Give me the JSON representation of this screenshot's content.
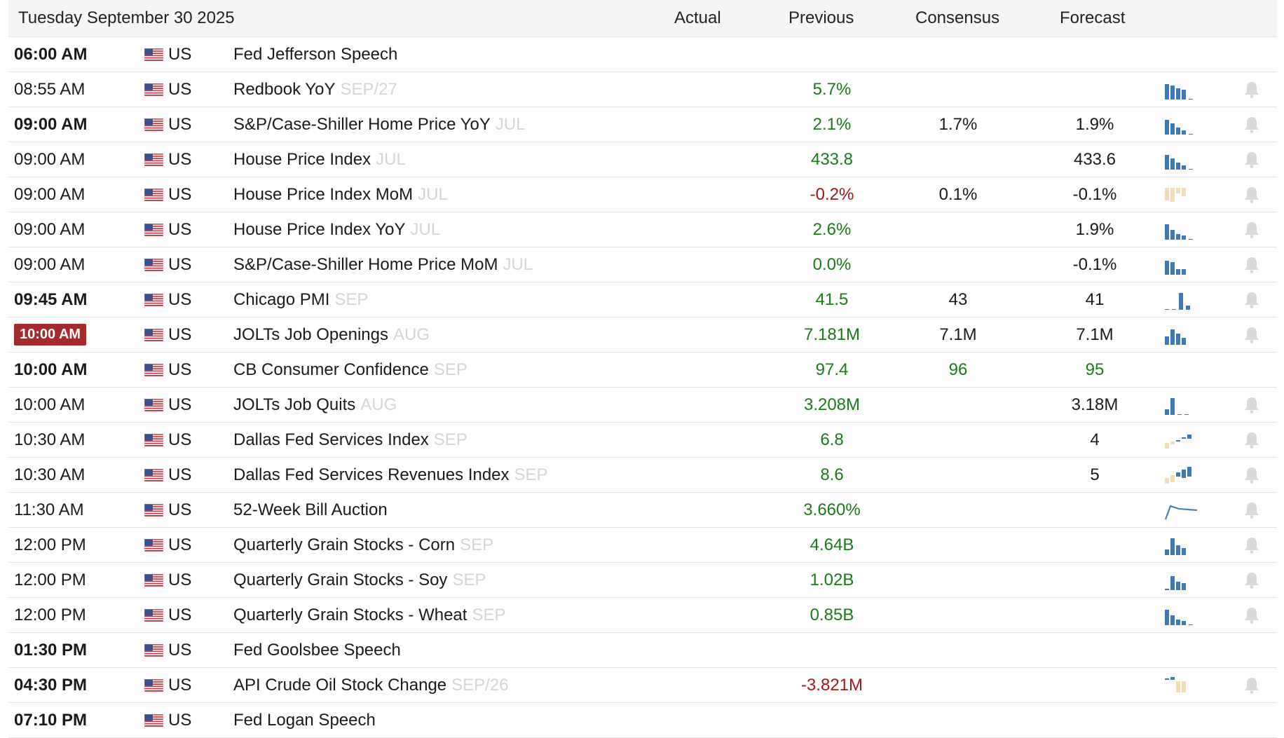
{
  "header": {
    "date": "Tuesday September 30 2025",
    "col_actual": "Actual",
    "col_previous": "Previous",
    "col_consensus": "Consensus",
    "col_forecast": "Forecast"
  },
  "colors": {
    "positive": "#1a7a1a",
    "negative": "#a01818",
    "bar_blue": "#3d7ab5",
    "bar_tan": "#f2ddb5",
    "live_badge": "#a52a2a",
    "bell": "#d9d9d9"
  },
  "rows": [
    {
      "time": "06:00 AM",
      "bold": true,
      "country": "US",
      "event": "Fed Jefferson Speech",
      "period": "",
      "previous": "",
      "prev_tone": "",
      "consensus": "",
      "cons_tone": "",
      "forecast": "",
      "fore_tone": "",
      "spark": "none",
      "bell": false
    },
    {
      "time": "08:55 AM",
      "bold": false,
      "country": "US",
      "event": "Redbook YoY",
      "period": "SEP/27",
      "previous": "5.7%",
      "prev_tone": "green",
      "consensus": "",
      "cons_tone": "",
      "forecast": "",
      "fore_tone": "",
      "spark": "bars4",
      "bell": true
    },
    {
      "time": "09:00 AM",
      "bold": true,
      "country": "US",
      "event": "S&P/Case-Shiller Home Price YoY",
      "period": "JUL",
      "previous": "2.1%",
      "prev_tone": "green",
      "consensus": "1.7%",
      "cons_tone": "",
      "forecast": "1.9%",
      "fore_tone": "",
      "spark": "bars4b",
      "bell": true
    },
    {
      "time": "09:00 AM",
      "bold": false,
      "country": "US",
      "event": "House Price Index",
      "period": "JUL",
      "previous": "433.8",
      "prev_tone": "green",
      "consensus": "",
      "cons_tone": "",
      "forecast": "433.6",
      "fore_tone": "",
      "spark": "bars4b",
      "bell": true
    },
    {
      "time": "09:00 AM",
      "bold": false,
      "country": "US",
      "event": "House Price Index MoM",
      "period": "JUL",
      "previous": "-0.2%",
      "prev_tone": "red",
      "consensus": "0.1%",
      "cons_tone": "",
      "forecast": "-0.1%",
      "fore_tone": "",
      "spark": "tan",
      "bell": true
    },
    {
      "time": "09:00 AM",
      "bold": false,
      "country": "US",
      "event": "House Price Index YoY",
      "period": "JUL",
      "previous": "2.6%",
      "prev_tone": "green",
      "consensus": "",
      "cons_tone": "",
      "forecast": "1.9%",
      "fore_tone": "",
      "spark": "bars4c",
      "bell": true
    },
    {
      "time": "09:00 AM",
      "bold": false,
      "country": "US",
      "event": "S&P/Case-Shiller Home Price MoM",
      "period": "JUL",
      "previous": "0.0%",
      "prev_tone": "green",
      "consensus": "",
      "cons_tone": "",
      "forecast": "-0.1%",
      "fore_tone": "",
      "spark": "bars3",
      "bell": true
    },
    {
      "time": "09:45 AM",
      "bold": true,
      "country": "US",
      "event": "Chicago PMI",
      "period": "SEP",
      "previous": "41.5",
      "prev_tone": "green",
      "consensus": "43",
      "cons_tone": "",
      "forecast": "41",
      "fore_tone": "",
      "spark": "tall",
      "bell": true
    },
    {
      "time": "10:00 AM",
      "bold": true,
      "live": true,
      "country": "US",
      "event": "JOLTs Job Openings",
      "period": "AUG",
      "previous": "7.181M",
      "prev_tone": "green",
      "consensus": "7.1M",
      "cons_tone": "",
      "forecast": "7.1M",
      "fore_tone": "",
      "spark": "bars4d",
      "bell": true
    },
    {
      "time": "10:00 AM",
      "bold": true,
      "country": "US",
      "event": "CB Consumer Confidence",
      "period": "SEP",
      "previous": "97.4",
      "prev_tone": "green",
      "consensus": "96",
      "cons_tone": "green",
      "forecast": "95",
      "fore_tone": "green",
      "spark": "none",
      "bell": false
    },
    {
      "time": "10:00 AM",
      "bold": false,
      "country": "US",
      "event": "JOLTs Job Quits",
      "period": "AUG",
      "previous": "3.208M",
      "prev_tone": "green",
      "consensus": "",
      "cons_tone": "",
      "forecast": "3.18M",
      "fore_tone": "",
      "spark": "quits",
      "bell": true
    },
    {
      "time": "10:30 AM",
      "bold": false,
      "country": "US",
      "event": "Dallas Fed Services Index",
      "period": "SEP",
      "previous": "6.8",
      "prev_tone": "green",
      "consensus": "",
      "cons_tone": "",
      "forecast": "4",
      "fore_tone": "",
      "spark": "dallas1",
      "bell": true
    },
    {
      "time": "10:30 AM",
      "bold": false,
      "country": "US",
      "event": "Dallas Fed Services Revenues Index",
      "period": "SEP",
      "previous": "8.6",
      "prev_tone": "green",
      "consensus": "",
      "cons_tone": "",
      "forecast": "5",
      "fore_tone": "",
      "spark": "dallas2",
      "bell": true
    },
    {
      "time": "11:30 AM",
      "bold": false,
      "country": "US",
      "event": "52-Week Bill Auction",
      "period": "",
      "previous": "3.660%",
      "prev_tone": "green",
      "consensus": "",
      "cons_tone": "",
      "forecast": "",
      "fore_tone": "",
      "spark": "line",
      "bell": true
    },
    {
      "time": "12:00 PM",
      "bold": false,
      "country": "US",
      "event": "Quarterly Grain Stocks - Corn",
      "period": "SEP",
      "previous": "4.64B",
      "prev_tone": "green",
      "consensus": "",
      "cons_tone": "",
      "forecast": "",
      "fore_tone": "",
      "spark": "grain1",
      "bell": true
    },
    {
      "time": "12:00 PM",
      "bold": false,
      "country": "US",
      "event": "Quarterly Grain Stocks - Soy",
      "period": "SEP",
      "previous": "1.02B",
      "prev_tone": "green",
      "consensus": "",
      "cons_tone": "",
      "forecast": "",
      "fore_tone": "",
      "spark": "grain2",
      "bell": true
    },
    {
      "time": "12:00 PM",
      "bold": false,
      "country": "US",
      "event": "Quarterly Grain Stocks - Wheat",
      "period": "SEP",
      "previous": "0.85B",
      "prev_tone": "green",
      "consensus": "",
      "cons_tone": "",
      "forecast": "",
      "fore_tone": "",
      "spark": "bars4c",
      "bell": true
    },
    {
      "time": "01:30 PM",
      "bold": true,
      "country": "US",
      "event": "Fed Goolsbee Speech",
      "period": "",
      "previous": "",
      "prev_tone": "",
      "consensus": "",
      "cons_tone": "",
      "forecast": "",
      "fore_tone": "",
      "spark": "none",
      "bell": false
    },
    {
      "time": "04:30 PM",
      "bold": true,
      "country": "US",
      "event": "API Crude Oil Stock Change",
      "period": "SEP/26",
      "previous": "-3.821M",
      "prev_tone": "red",
      "consensus": "",
      "cons_tone": "",
      "forecast": "",
      "fore_tone": "",
      "spark": "api",
      "bell": true
    },
    {
      "time": "07:10 PM",
      "bold": true,
      "country": "US",
      "event": "Fed Logan Speech",
      "period": "",
      "previous": "",
      "prev_tone": "",
      "consensus": "",
      "cons_tone": "",
      "forecast": "",
      "fore_tone": "",
      "spark": "none",
      "bell": false
    }
  ]
}
